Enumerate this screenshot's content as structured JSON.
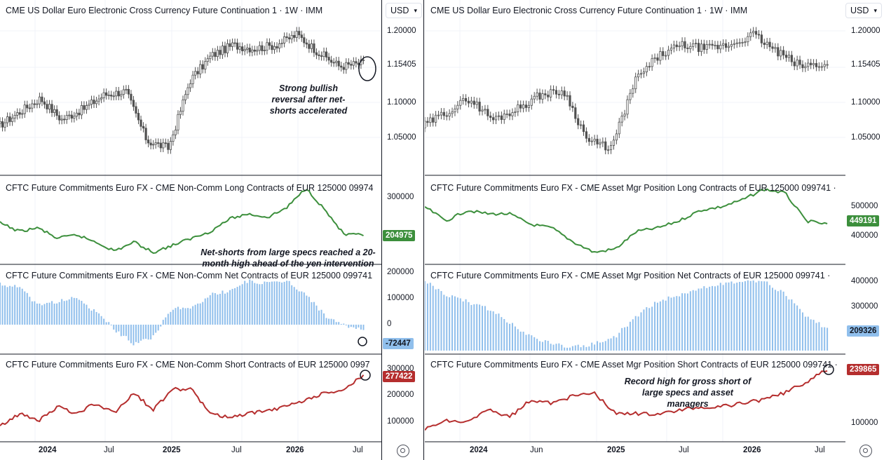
{
  "charts": [
    {
      "side": "left",
      "price_title": "CME US Dollar Euro Electronic Cross Currency Future Continuation 1 · 1W · IMM",
      "long_title": "CFTC Future Commitments Euro FX - CME Non-Comm Long Contracts of EUR 125000 09974",
      "net_title": "CFTC Future Commitments Euro FX - CME Non-Comm Net Contracts of EUR 125000 099741",
      "short_title": "CFTC Future Commitments Euro FX - CME Non-Comm Short Contracts of EUR 125000 0997",
      "price_ticks": [
        "1.20000",
        "1.15405",
        "1.10000",
        "1.05000"
      ],
      "long_ticks": [
        "300000"
      ],
      "long_last": "204975",
      "net_ticks": [
        "200000",
        "100000",
        "0"
      ],
      "net_last": "-72447",
      "short_ticks": [
        "300000",
        "200000",
        "100000"
      ],
      "short_last": "277422",
      "x_ticks": [
        "2024",
        "Jul",
        "2025",
        "Jul",
        "2026",
        "Jul"
      ]
    },
    {
      "side": "right",
      "price_title": "CME US Dollar Euro Electronic Cross Currency Future Continuation 1 · 1W · IMM",
      "long_title": "CFTC Future Commitments Euro FX - CME Asset Mgr Position Long Contracts of EUR 125000 099741 ·",
      "net_title": "CFTC Future Commitments Euro FX - CME Asset Mgr Position Net Contracts of EUR 125000 099741 ·",
      "short_title": "CFTC Future Commitments Euro FX - CME Asset Mgr Position Short Contracts of EUR 125000 099741 ·",
      "price_ticks": [
        "1.20000",
        "1.15405",
        "1.10000",
        "1.05000"
      ],
      "long_ticks": [
        "500000",
        "400000"
      ],
      "long_last": "449191",
      "net_ticks": [
        "400000",
        "300000"
      ],
      "net_last": "209326",
      "short_ticks": [
        "100000"
      ],
      "short_last": "239865",
      "x_ticks": [
        "2024",
        "Jun",
        "2025",
        "Jul",
        "2026",
        "Jul"
      ]
    }
  ],
  "currency": "USD",
  "annotations": {
    "bullish": "Strong bullish reversal after net-shorts accelerated",
    "netshorts": "Net-shorts from large specs reached a 20-month high ahead of the yen intervention",
    "record": "Record high for gross short of large specs and asset managers"
  },
  "colors": {
    "long_line": "#3c8f3c",
    "net_bars": "#90bfec",
    "short_line": "#b52e2e",
    "candle": "#505050"
  },
  "chart_data": [
    {
      "type": "line",
      "title": "CME US Dollar Euro Electronic Cross Currency Future Continuation 1 · 1W · IMM (weekly price, approx.)",
      "x": [
        "2023-10",
        "2023-12",
        "2024-02",
        "2024-04",
        "2024-06",
        "2024-08",
        "2024-10",
        "2024-12",
        "2025-02",
        "2025-04",
        "2025-06",
        "2025-08",
        "2025-10",
        "2025-12",
        "2026-02",
        "2026-04",
        "2026-06",
        "2026-07"
      ],
      "values": [
        1.065,
        1.085,
        1.105,
        1.075,
        1.09,
        1.11,
        1.115,
        1.045,
        1.035,
        1.13,
        1.165,
        1.18,
        1.175,
        1.18,
        1.195,
        1.17,
        1.15,
        1.154
      ],
      "ylim": [
        1.02,
        1.22
      ]
    },
    {
      "type": "line",
      "title": "CFTC Non-Comm Short Contracts (approx.)",
      "x": [
        "2023-10",
        "2024-01",
        "2024-04",
        "2024-07",
        "2024-10",
        "2025-01",
        "2025-04",
        "2025-07",
        "2025-10",
        "2026-01",
        "2026-04",
        "2026-07"
      ],
      "values": [
        80000,
        120000,
        90000,
        140000,
        170000,
        220000,
        130000,
        120000,
        140000,
        150000,
        210000,
        277422
      ],
      "ylim": [
        50000,
        320000
      ]
    },
    {
      "type": "line",
      "title": "CFTC Asset Mgr Position Short Contracts (approx.)",
      "x": [
        "2023-10",
        "2024-01",
        "2024-04",
        "2024-07",
        "2024-10",
        "2025-01",
        "2025-04",
        "2025-07",
        "2025-10",
        "2026-01",
        "2026-04",
        "2026-07"
      ],
      "values": [
        75000,
        120000,
        95000,
        140000,
        150000,
        180000,
        130000,
        130000,
        150000,
        150000,
        190000,
        239865
      ],
      "ylim": [
        50000,
        270000
      ]
    }
  ]
}
